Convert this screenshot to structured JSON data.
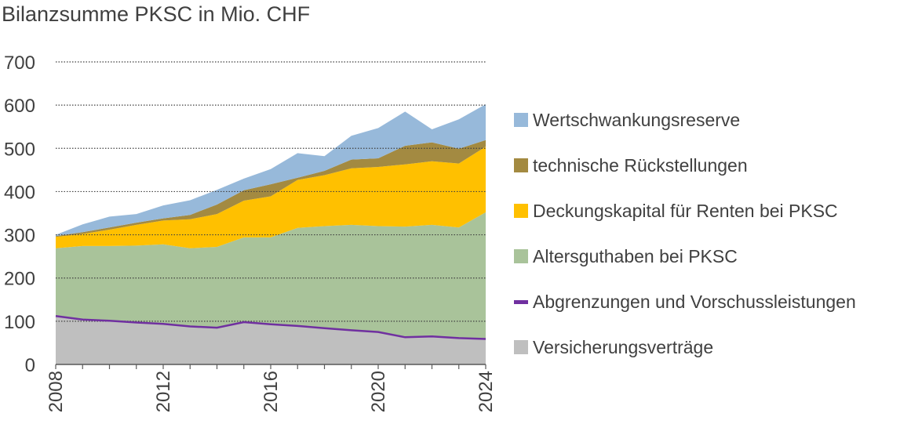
{
  "chart_data": {
    "type": "area",
    "title": "Bilanzsumme PKSC in Mio. CHF",
    "x": [
      2008,
      2009,
      2010,
      2011,
      2012,
      2013,
      2014,
      2015,
      2016,
      2017,
      2018,
      2019,
      2020,
      2021,
      2022,
      2023,
      2024
    ],
    "xticks": [
      2008,
      2012,
      2016,
      2020,
      2024
    ],
    "yticks": [
      0,
      100,
      200,
      300,
      400,
      500,
      600,
      700
    ],
    "ylim": [
      0,
      700
    ],
    "xlim": [
      2008,
      2024
    ],
    "grid": "horizontal-dotted",
    "legend_position": "right",
    "stacked": true,
    "series": [
      {
        "name": "Versicherungsverträge",
        "color": "#bfbfbf",
        "kind": "area",
        "values": [
          111,
          103,
          100,
          96,
          93,
          87,
          84,
          97,
          92,
          88,
          83,
          78,
          74,
          62,
          64,
          60,
          58
        ]
      },
      {
        "name": "Abgrenzungen und Vorschussleistungen",
        "color": "#7030a0",
        "kind": "line",
        "values": [
          1,
          1,
          1,
          1,
          1,
          1,
          1,
          1,
          1,
          1,
          1,
          1,
          1,
          1,
          1,
          1,
          1
        ]
      },
      {
        "name": "Altersguthaben bei PKSC",
        "color": "#a9c39a",
        "kind": "area",
        "values": [
          157,
          170,
          173,
          178,
          184,
          181,
          187,
          196,
          201,
          227,
          236,
          244,
          245,
          256,
          258,
          256,
          293
        ]
      },
      {
        "name": "Deckungskapital für Renten bei PKSC",
        "color": "#ffc000",
        "kind": "area",
        "values": [
          26,
          28,
          38,
          48,
          55,
          67,
          76,
          85,
          95,
          111,
          118,
          131,
          137,
          144,
          147,
          148,
          152
        ]
      },
      {
        "name": "technische Rückstellungen",
        "color": "#a38a41",
        "kind": "area",
        "values": [
          2,
          4,
          5,
          5,
          5,
          10,
          22,
          24,
          28,
          5,
          10,
          20,
          20,
          43,
          44,
          34,
          15
        ]
      },
      {
        "name": "Wertschwankungsreserve",
        "color": "#97b9da",
        "kind": "area",
        "values": [
          3,
          18,
          25,
          20,
          30,
          34,
          34,
          27,
          35,
          57,
          34,
          55,
          70,
          79,
          30,
          68,
          83
        ]
      }
    ],
    "legend_order": [
      "Wertschwankungsreserve",
      "technische Rückstellungen",
      "Deckungskapital für Renten bei PKSC",
      "Altersguthaben bei PKSC",
      "Abgrenzungen und Vorschussleistungen",
      "Versicherungsverträge"
    ]
  }
}
